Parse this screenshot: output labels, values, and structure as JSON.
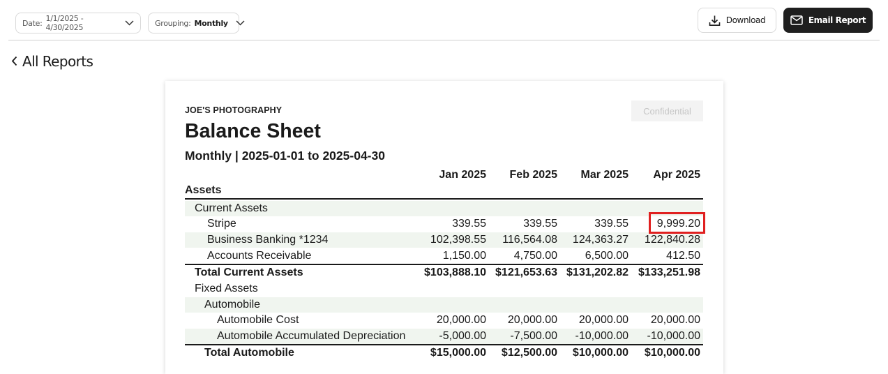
{
  "toolbar": {
    "date_label": "Date:",
    "date_value": "1/1/2025 - 4/30/2025",
    "grouping_label": "Grouping:",
    "grouping_value": "Monthly",
    "download_label": "Download",
    "email_label": "Email Report"
  },
  "nav": {
    "back_label": "All Reports"
  },
  "report": {
    "company": "JOE'S PHOTOGRAPHY",
    "confidential_label": "Confidential",
    "title": "Balance Sheet",
    "subtitle": "Monthly | 2025-01-01 to 2025-04-30",
    "months": [
      "Jan 2025",
      "Feb 2025",
      "Mar 2025",
      "Apr 2025"
    ],
    "section": "Assets",
    "current_assets": {
      "label": "Current Assets",
      "rows": [
        {
          "label": "Stripe",
          "values": [
            "339.55",
            "339.55",
            "339.55",
            "9,999.20"
          ]
        },
        {
          "label": "Business Banking *1234",
          "values": [
            "102,398.55",
            "116,564.08",
            "124,363.27",
            "122,840.28"
          ]
        },
        {
          "label": "Accounts Receivable",
          "values": [
            "1,150.00",
            "4,750.00",
            "6,500.00",
            "412.50"
          ]
        }
      ],
      "total": {
        "label": "Total Current Assets",
        "values": [
          "$103,888.10",
          "$121,653.63",
          "$131,202.82",
          "$133,251.98"
        ]
      }
    },
    "fixed_assets": {
      "label": "Fixed Assets",
      "automobile": {
        "label": "Automobile",
        "rows": [
          {
            "label": "Automobile Cost",
            "values": [
              "20,000.00",
              "20,000.00",
              "20,000.00",
              "20,000.00"
            ]
          },
          {
            "label": "Automobile Accumulated Depreciation",
            "values": [
              "-5,000.00",
              "-7,500.00",
              "-10,000.00",
              "-10,000.00"
            ]
          }
        ],
        "total": {
          "label": "Total Automobile",
          "values": [
            "$15,000.00",
            "$12,500.00",
            "$10,000.00",
            "$10,000.00"
          ]
        }
      }
    }
  },
  "colors": {
    "highlight": "#e02020",
    "row_shade": "#f0f5ef",
    "email_button": "#1f1f1f"
  }
}
